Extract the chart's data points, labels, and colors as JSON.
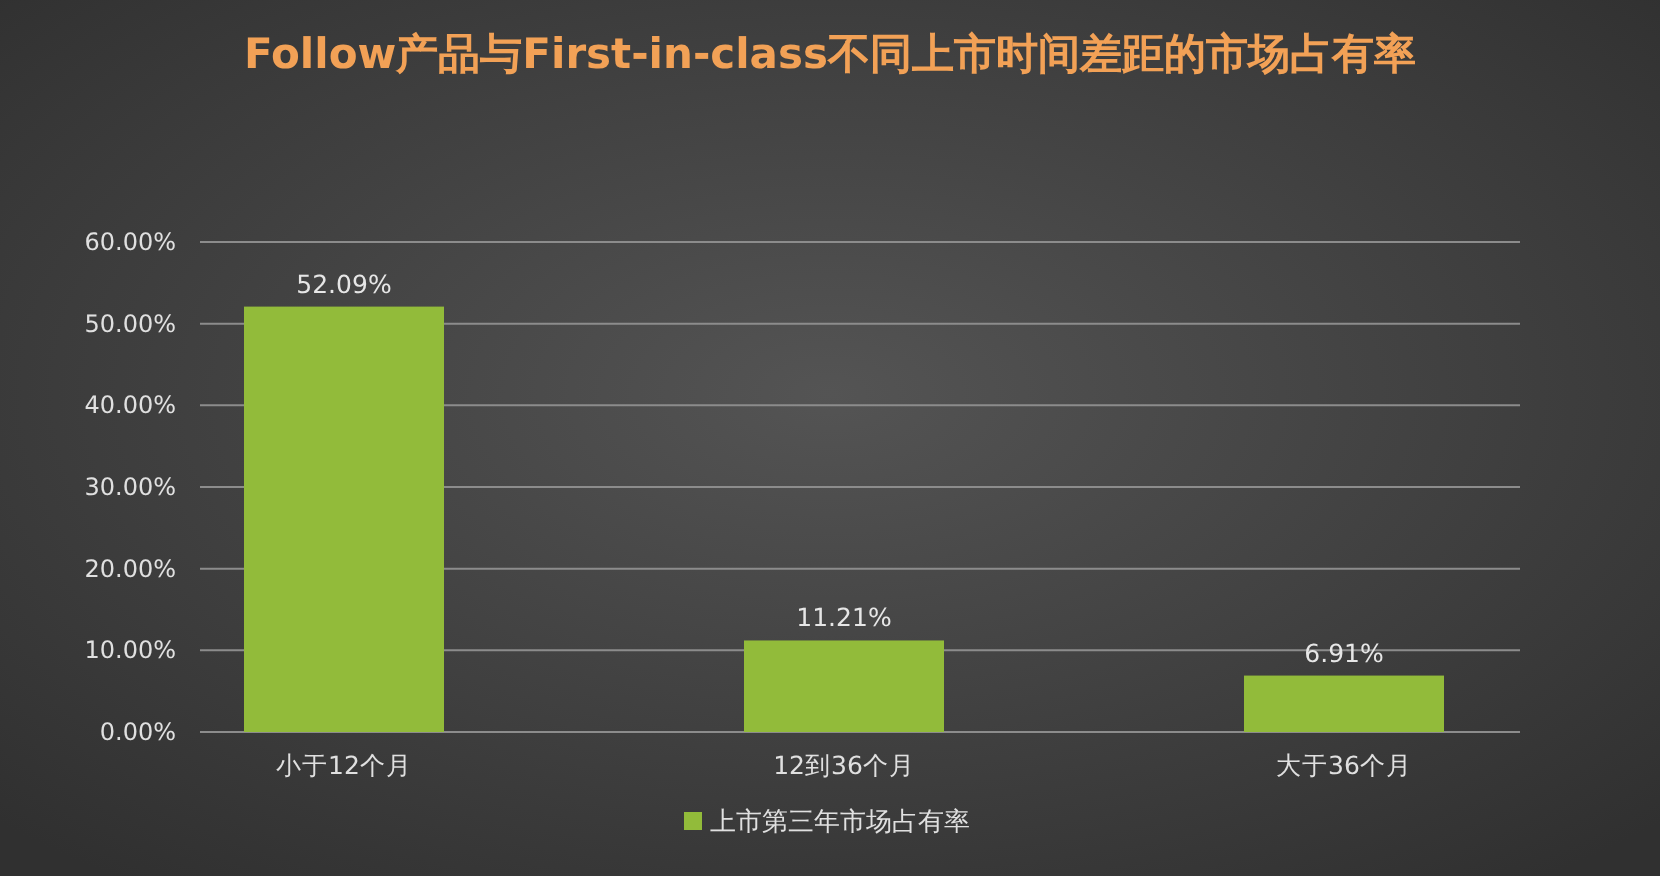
{
  "chart_data": {
    "type": "bar",
    "title": "Follow产品与First-in-class不同上市时间差距的市场占有率",
    "categories": [
      "小于12个月",
      "12到36个月",
      "大于36个月"
    ],
    "series": [
      {
        "name": "上市第三年市场占有率",
        "color": "#92bb3a",
        "values": [
          52.09,
          11.21,
          6.91
        ],
        "value_labels": [
          "52.09%",
          "11.21%",
          "6.91%"
        ]
      }
    ],
    "ylim": [
      0,
      60
    ],
    "yticks": [
      {
        "value": 0,
        "label": "0.00%"
      },
      {
        "value": 10,
        "label": "10.00%"
      },
      {
        "value": 20,
        "label": "20.00%"
      },
      {
        "value": 30,
        "label": "30.00%"
      },
      {
        "value": 40,
        "label": "40.00%"
      },
      {
        "value": 50,
        "label": "50.00%"
      },
      {
        "value": 60,
        "label": "60.00%"
      }
    ],
    "grid": true,
    "legend": "bottom"
  }
}
